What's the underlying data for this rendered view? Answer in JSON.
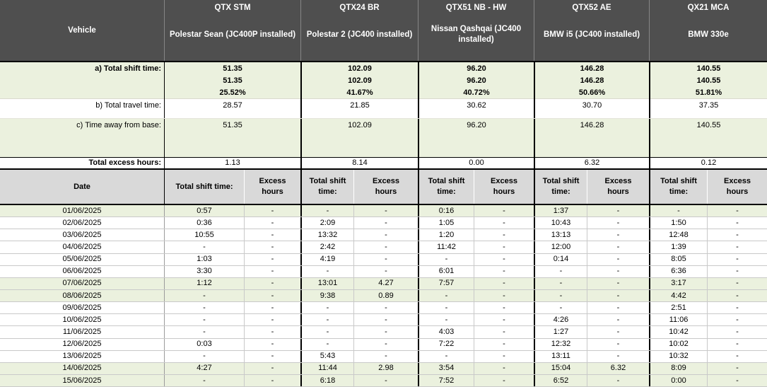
{
  "colors": {
    "header_bg": "#4f4f4f",
    "header_text": "#ffffff",
    "band_green": "#ebf1de",
    "subheader_gray": "#d9d9d9",
    "grid_light": "#c9c9c9",
    "border_black": "#000000"
  },
  "table": {
    "corner_label": "Vehicle",
    "vehicles": [
      {
        "reg": "QTX STM",
        "model": "Polestar Sean (JC400P installed)",
        "shift_total": [
          "51.35",
          "51.35",
          "25.52%"
        ],
        "travel_total": "28.57",
        "away_total": "51.35",
        "excess_total": "1.13"
      },
      {
        "reg": "QTX24 BR",
        "model": "Polestar 2 (JC400 installed)",
        "shift_total": [
          "102.09",
          "102.09",
          "41.67%"
        ],
        "travel_total": "21.85",
        "away_total": "102.09",
        "excess_total": "8.14"
      },
      {
        "reg": "QTX51 NB - HW",
        "model": "Nissan Qashqai (JC400 installed)",
        "shift_total": [
          "96.20",
          "96.20",
          "40.72%"
        ],
        "travel_total": "30.62",
        "away_total": "96.20",
        "excess_total": "0.00"
      },
      {
        "reg": "QTX52 AE",
        "model": "BMW i5 (JC400 installed)",
        "shift_total": [
          "146.28",
          "146.28",
          "50.66%"
        ],
        "travel_total": "30.70",
        "away_total": "146.28",
        "excess_total": "6.32"
      },
      {
        "reg": "QX21 MCA",
        "model": "BMW 330e",
        "shift_total": [
          "140.55",
          "140.55",
          "51.81%"
        ],
        "travel_total": "37.35",
        "away_total": "140.55",
        "excess_total": "0.12"
      }
    ],
    "summary_labels": {
      "shift": "a) Total shift time:",
      "travel": "b) Total travel time:",
      "away": "c) Time away from base:",
      "excess": "Total excess hours:"
    },
    "daily_headers": {
      "date": "Date",
      "shift": "Total shift time:",
      "excess": "Excess hours"
    },
    "daily_rows": [
      {
        "date": "01/06/2025",
        "weekend": true,
        "values": [
          [
            "0:57",
            "-"
          ],
          [
            "-",
            "-"
          ],
          [
            "0:16",
            "-"
          ],
          [
            "1:37",
            "-"
          ],
          [
            "-",
            "-"
          ]
        ]
      },
      {
        "date": "02/06/2025",
        "weekend": false,
        "values": [
          [
            "0:36",
            "-"
          ],
          [
            "2:09",
            "-"
          ],
          [
            "1:05",
            "-"
          ],
          [
            "10:43",
            "-"
          ],
          [
            "1:50",
            "-"
          ]
        ]
      },
      {
        "date": "03/06/2025",
        "weekend": false,
        "values": [
          [
            "10:55",
            "-"
          ],
          [
            "13:32",
            "-"
          ],
          [
            "1:20",
            "-"
          ],
          [
            "13:13",
            "-"
          ],
          [
            "12:48",
            "-"
          ]
        ]
      },
      {
        "date": "04/06/2025",
        "weekend": false,
        "values": [
          [
            "-",
            "-"
          ],
          [
            "2:42",
            "-"
          ],
          [
            "11:42",
            "-"
          ],
          [
            "12:00",
            "-"
          ],
          [
            "1:39",
            "-"
          ]
        ]
      },
      {
        "date": "05/06/2025",
        "weekend": false,
        "values": [
          [
            "1:03",
            "-"
          ],
          [
            "4:19",
            "-"
          ],
          [
            "-",
            "-"
          ],
          [
            "0:14",
            "-"
          ],
          [
            "8:05",
            "-"
          ]
        ]
      },
      {
        "date": "06/06/2025",
        "weekend": false,
        "values": [
          [
            "3:30",
            "-"
          ],
          [
            "-",
            "-"
          ],
          [
            "6:01",
            "-"
          ],
          [
            "-",
            "-"
          ],
          [
            "6:36",
            "-"
          ]
        ]
      },
      {
        "date": "07/06/2025",
        "weekend": true,
        "values": [
          [
            "1:12",
            "-"
          ],
          [
            "13:01",
            "4.27"
          ],
          [
            "7:57",
            "-"
          ],
          [
            "-",
            "-"
          ],
          [
            "3:17",
            "-"
          ]
        ]
      },
      {
        "date": "08/06/2025",
        "weekend": true,
        "values": [
          [
            "-",
            "-"
          ],
          [
            "9:38",
            "0.89"
          ],
          [
            "-",
            "-"
          ],
          [
            "-",
            "-"
          ],
          [
            "4:42",
            "-"
          ]
        ]
      },
      {
        "date": "09/06/2025",
        "weekend": false,
        "values": [
          [
            "-",
            "-"
          ],
          [
            "-",
            "-"
          ],
          [
            "-",
            "-"
          ],
          [
            "-",
            "-"
          ],
          [
            "2:51",
            "-"
          ]
        ]
      },
      {
        "date": "10/06/2025",
        "weekend": false,
        "values": [
          [
            "-",
            "-"
          ],
          [
            "-",
            "-"
          ],
          [
            "-",
            "-"
          ],
          [
            "4:26",
            "-"
          ],
          [
            "11:06",
            "-"
          ]
        ]
      },
      {
        "date": "11/06/2025",
        "weekend": false,
        "values": [
          [
            "-",
            "-"
          ],
          [
            "-",
            "-"
          ],
          [
            "4:03",
            "-"
          ],
          [
            "1:27",
            "-"
          ],
          [
            "10:42",
            "-"
          ]
        ]
      },
      {
        "date": "12/06/2025",
        "weekend": false,
        "values": [
          [
            "0:03",
            "-"
          ],
          [
            "-",
            "-"
          ],
          [
            "7:22",
            "-"
          ],
          [
            "12:32",
            "-"
          ],
          [
            "10:02",
            "-"
          ]
        ]
      },
      {
        "date": "13/06/2025",
        "weekend": false,
        "values": [
          [
            "-",
            "-"
          ],
          [
            "5:43",
            "-"
          ],
          [
            "-",
            "-"
          ],
          [
            "13:11",
            "-"
          ],
          [
            "10:32",
            "-"
          ]
        ]
      },
      {
        "date": "14/06/2025",
        "weekend": true,
        "values": [
          [
            "4:27",
            "-"
          ],
          [
            "11:44",
            "2.98"
          ],
          [
            "3:54",
            "-"
          ],
          [
            "15:04",
            "6.32"
          ],
          [
            "8:09",
            "-"
          ]
        ]
      },
      {
        "date": "15/06/2025",
        "weekend": true,
        "values": [
          [
            "-",
            "-"
          ],
          [
            "6:18",
            "-"
          ],
          [
            "7:52",
            "-"
          ],
          [
            "6:52",
            "-"
          ],
          [
            "0:00",
            "-"
          ]
        ]
      }
    ]
  }
}
